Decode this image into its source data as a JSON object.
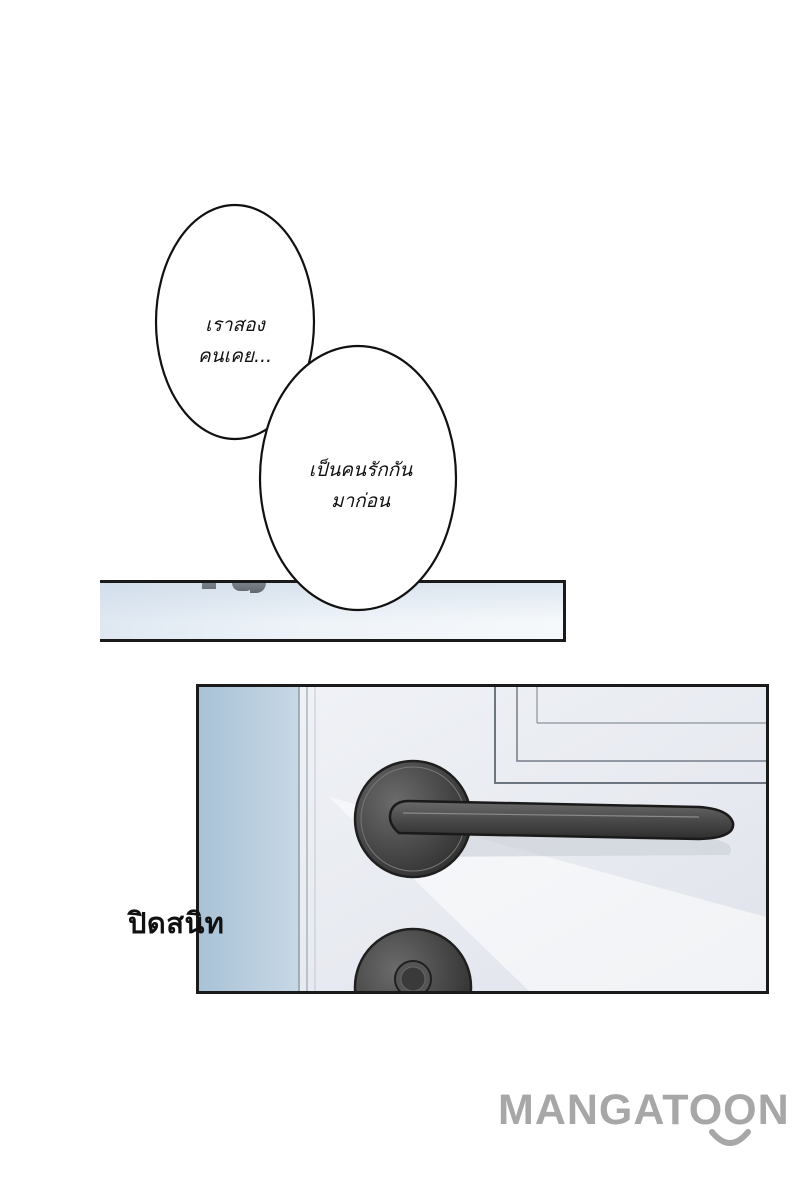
{
  "bubbles": {
    "first": {
      "line1": "เราสอง",
      "line2": "คนเคย..."
    },
    "second": {
      "line1": "เป็นคนรักกัน",
      "line2": "มาก่อน"
    }
  },
  "sound_effect": {
    "text": "ปิดสนิท"
  },
  "watermark": {
    "text": "MANGATOON"
  },
  "colors": {
    "ink": "#1a1a1a",
    "door_wall_blue": "#b9cedf",
    "handle_dark": "#4a4a4a",
    "watermark_gray": "#a7a7a7"
  }
}
